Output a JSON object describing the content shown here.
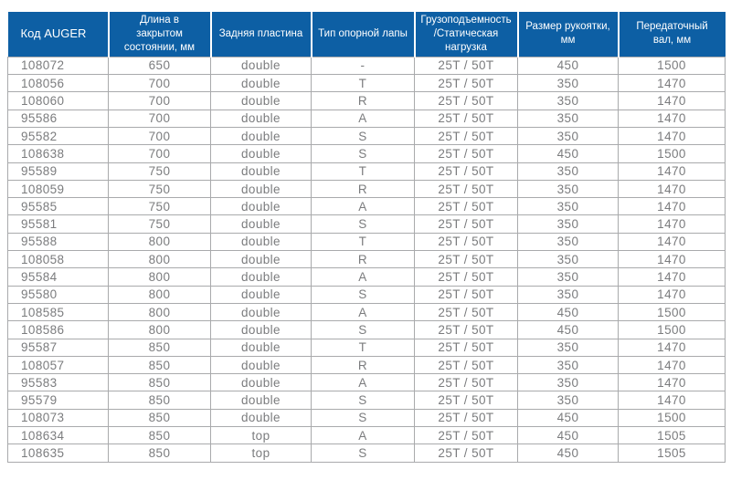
{
  "colors": {
    "header_bg": "#0d5fa4",
    "header_text": "#ffffff",
    "body_text": "#7b7c7e",
    "border": "#a9aaac"
  },
  "table": {
    "columns": [
      {
        "key": "auger_code",
        "label": "Код AUGER"
      },
      {
        "key": "closed_length_mm",
        "label": "Длина в\nзакрытом\nсостоянии, мм"
      },
      {
        "key": "back_plate",
        "label": "Задняя пластина"
      },
      {
        "key": "support_foot_type",
        "label": "Тип опорной лапы"
      },
      {
        "key": "capacity_static_load",
        "label": "Грузоподъемность\n/Статическая\nнагрузка"
      },
      {
        "key": "handle_size_mm",
        "label": "Размер рукоятки,\nмм"
      },
      {
        "key": "transmission_shaft_mm",
        "label": "Передаточный\nвал, мм"
      }
    ],
    "rows": [
      [
        "108072",
        "650",
        "double",
        "-",
        "25T / 50T",
        "450",
        "1500"
      ],
      [
        "108056",
        "700",
        "double",
        "T",
        "25T / 50T",
        "350",
        "1470"
      ],
      [
        "108060",
        "700",
        "double",
        "R",
        "25T / 50T",
        "350",
        "1470"
      ],
      [
        "95586",
        "700",
        "double",
        "A",
        "25T / 50T",
        "350",
        "1470"
      ],
      [
        "95582",
        "700",
        "double",
        "S",
        "25T / 50T",
        "350",
        "1470"
      ],
      [
        "108638",
        "700",
        "double",
        "S",
        "25T / 50T",
        "450",
        "1500"
      ],
      [
        "95589",
        "750",
        "double",
        "T",
        "25T / 50T",
        "350",
        "1470"
      ],
      [
        "108059",
        "750",
        "double",
        "R",
        "25T / 50T",
        "350",
        "1470"
      ],
      [
        "95585",
        "750",
        "double",
        "A",
        "25T / 50T",
        "350",
        "1470"
      ],
      [
        "95581",
        "750",
        "double",
        "S",
        "25T / 50T",
        "350",
        "1470"
      ],
      [
        "95588",
        "800",
        "double",
        "T",
        "25T / 50T",
        "350",
        "1470"
      ],
      [
        "108058",
        "800",
        "double",
        "R",
        "25T / 50T",
        "350",
        "1470"
      ],
      [
        "95584",
        "800",
        "double",
        "A",
        "25T / 50T",
        "350",
        "1470"
      ],
      [
        "95580",
        "800",
        "double",
        "S",
        "25T / 50T",
        "350",
        "1470"
      ],
      [
        "108585",
        "800",
        "double",
        "A",
        "25T / 50T",
        "450",
        "1500"
      ],
      [
        "108586",
        "800",
        "double",
        "S",
        "25T / 50T",
        "450",
        "1500"
      ],
      [
        "95587",
        "850",
        "double",
        "T",
        "25T / 50T",
        "350",
        "1470"
      ],
      [
        "108057",
        "850",
        "double",
        "R",
        "25T / 50T",
        "350",
        "1470"
      ],
      [
        "95583",
        "850",
        "double",
        "A",
        "25T / 50T",
        "350",
        "1470"
      ],
      [
        "95579",
        "850",
        "double",
        "S",
        "25T / 50T",
        "350",
        "1470"
      ],
      [
        "108073",
        "850",
        "double",
        "S",
        "25T / 50T",
        "450",
        "1500"
      ],
      [
        "108634",
        "850",
        "top",
        "A",
        "25T / 50T",
        "450",
        "1505"
      ],
      [
        "108635",
        "850",
        "top",
        "S",
        "25T / 50T",
        "450",
        "1505"
      ]
    ]
  }
}
